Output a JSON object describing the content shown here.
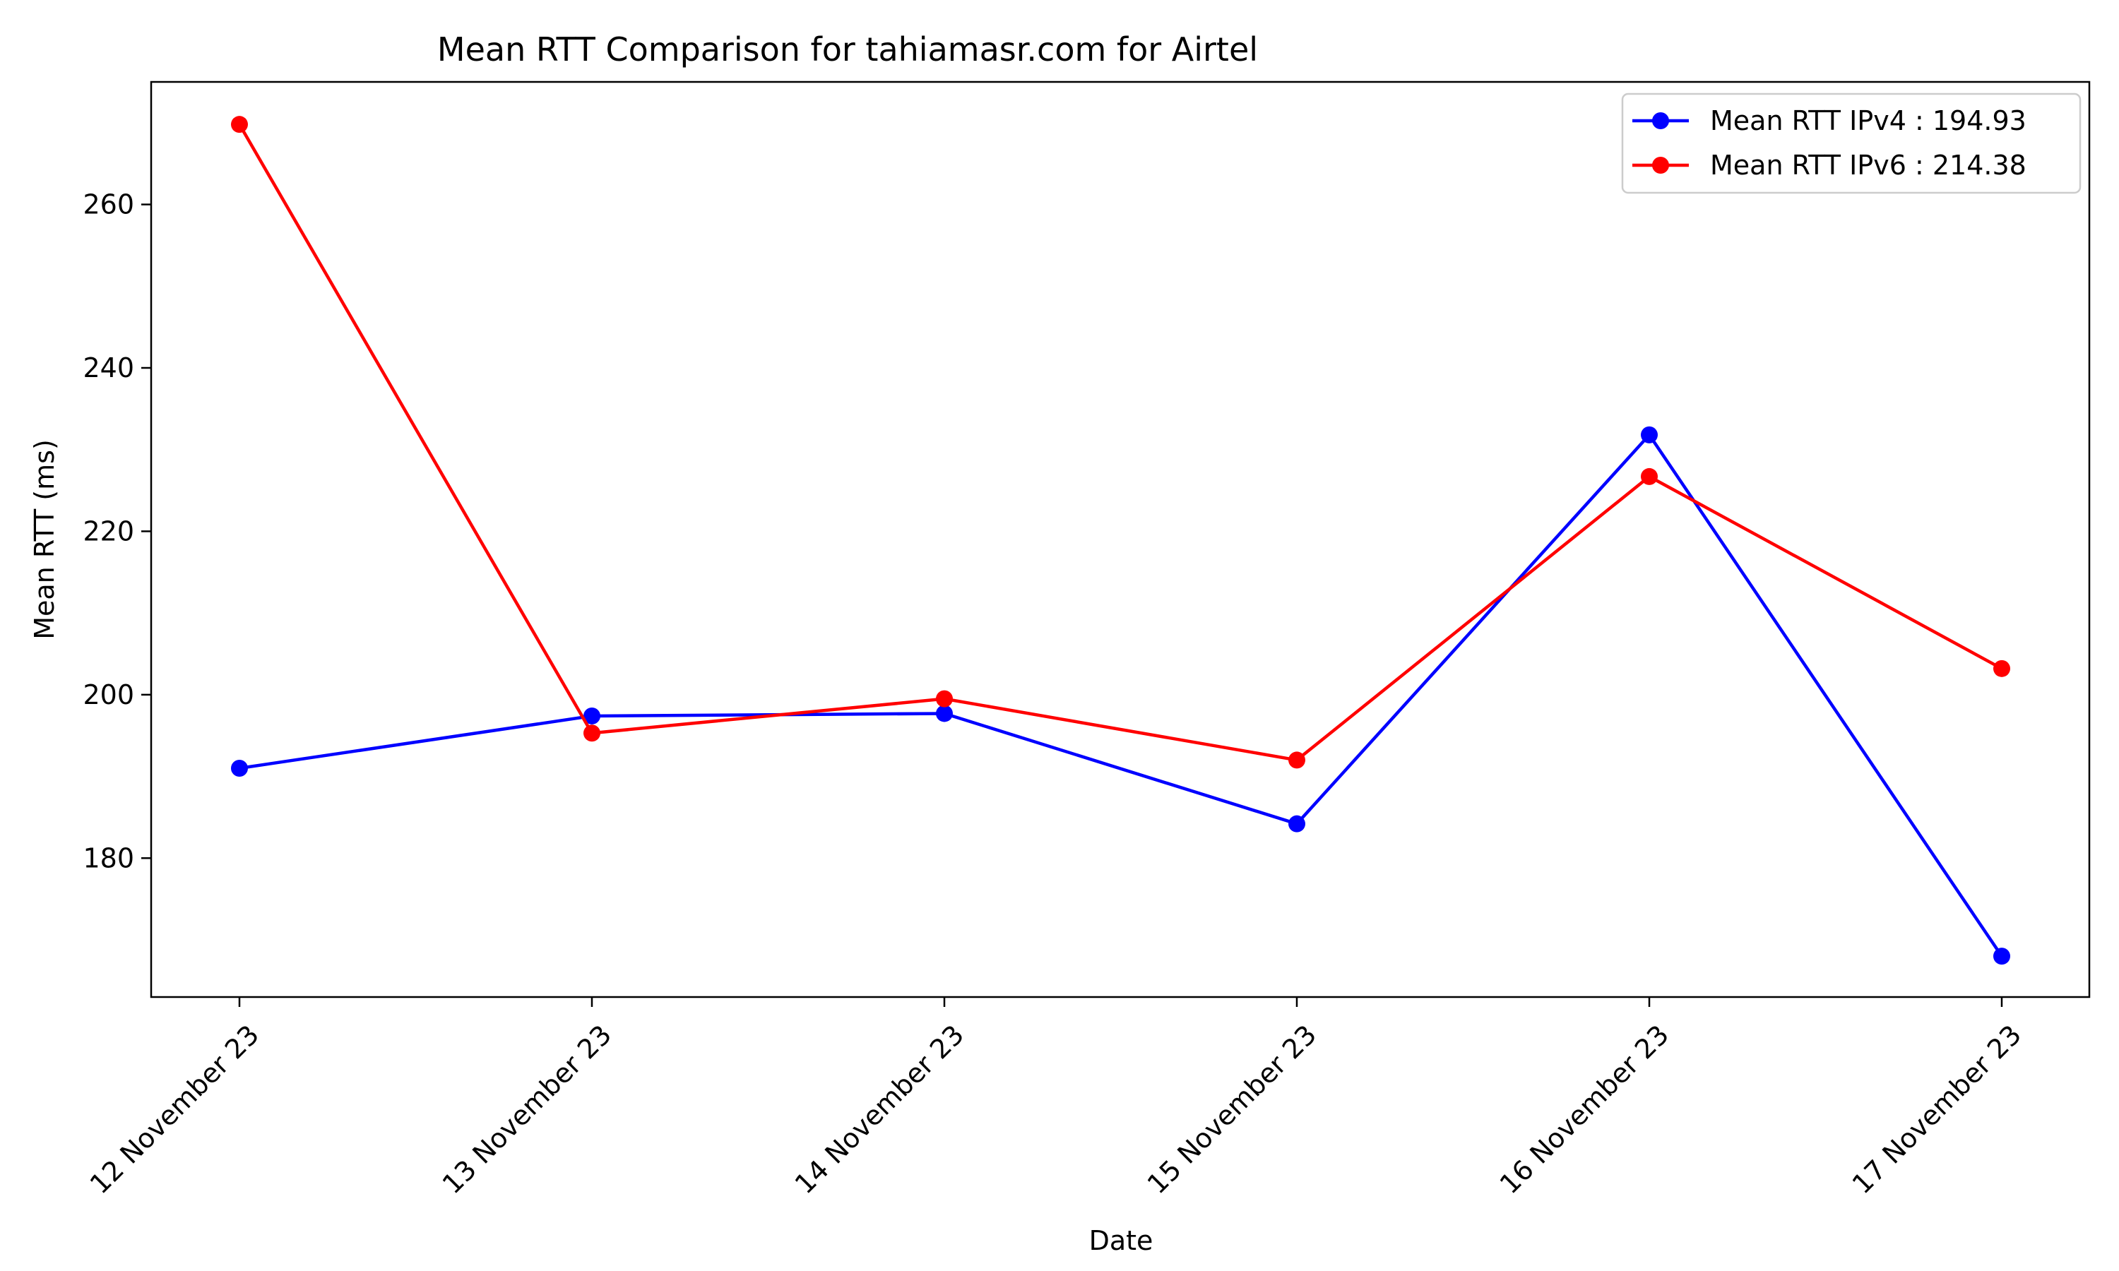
{
  "chart_data": {
    "type": "line",
    "title": "Mean RTT Comparison for tahiamasr.com for Airtel",
    "xlabel": "Date",
    "ylabel": "Mean RTT (ms)",
    "categories": [
      "12 November 23",
      "13 November 23",
      "14 November 23",
      "15 November 23",
      "16 November 23",
      "17 November 23"
    ],
    "series": [
      {
        "name": "Mean RTT IPv4 : 194.93",
        "color": "#0000ff",
        "values": [
          191.0,
          197.4,
          197.7,
          184.2,
          231.8,
          168.0
        ]
      },
      {
        "name": "Mean RTT IPv6 : 214.38",
        "color": "#ff0000",
        "values": [
          269.8,
          195.3,
          199.5,
          192.0,
          226.7,
          203.2
        ]
      }
    ],
    "ylim": [
      163,
      275
    ],
    "yticks": [
      180,
      200,
      220,
      240,
      260
    ],
    "grid": false,
    "legend_position": "top-right"
  }
}
